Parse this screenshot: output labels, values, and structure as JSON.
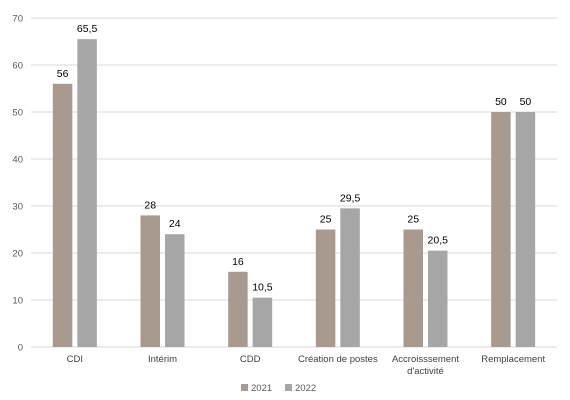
{
  "chart_data": {
    "type": "bar",
    "categories": [
      "CDI",
      "Intérim",
      "CDD",
      "Création de postes",
      "Accroisssement d'activité",
      "Remplacement"
    ],
    "category_lines": [
      [
        "CDI"
      ],
      [
        "Intérim"
      ],
      [
        "CDD"
      ],
      [
        "Création de postes"
      ],
      [
        "Accroisssement",
        "d'activité"
      ],
      [
        "Remplacement"
      ]
    ],
    "series": [
      {
        "name": "2021",
        "values": [
          56,
          28,
          16,
          25,
          25,
          50
        ],
        "labels": [
          "56",
          "28",
          "16",
          "25",
          "25",
          "50"
        ],
        "color": "#a89a8e"
      },
      {
        "name": "2022",
        "values": [
          65.5,
          24,
          10.5,
          29.5,
          20.5,
          50
        ],
        "labels": [
          "65,5",
          "24",
          "10,5",
          "29,5",
          "20,5",
          "50"
        ],
        "color": "#a6a6a6"
      }
    ],
    "title": "",
    "xlabel": "",
    "ylabel": "",
    "ylim": [
      0,
      70
    ],
    "yticks": [
      0,
      10,
      20,
      30,
      40,
      50,
      60,
      70
    ],
    "grid": true,
    "gridColor": "#d9d9d9",
    "legend": "bottom-center"
  }
}
